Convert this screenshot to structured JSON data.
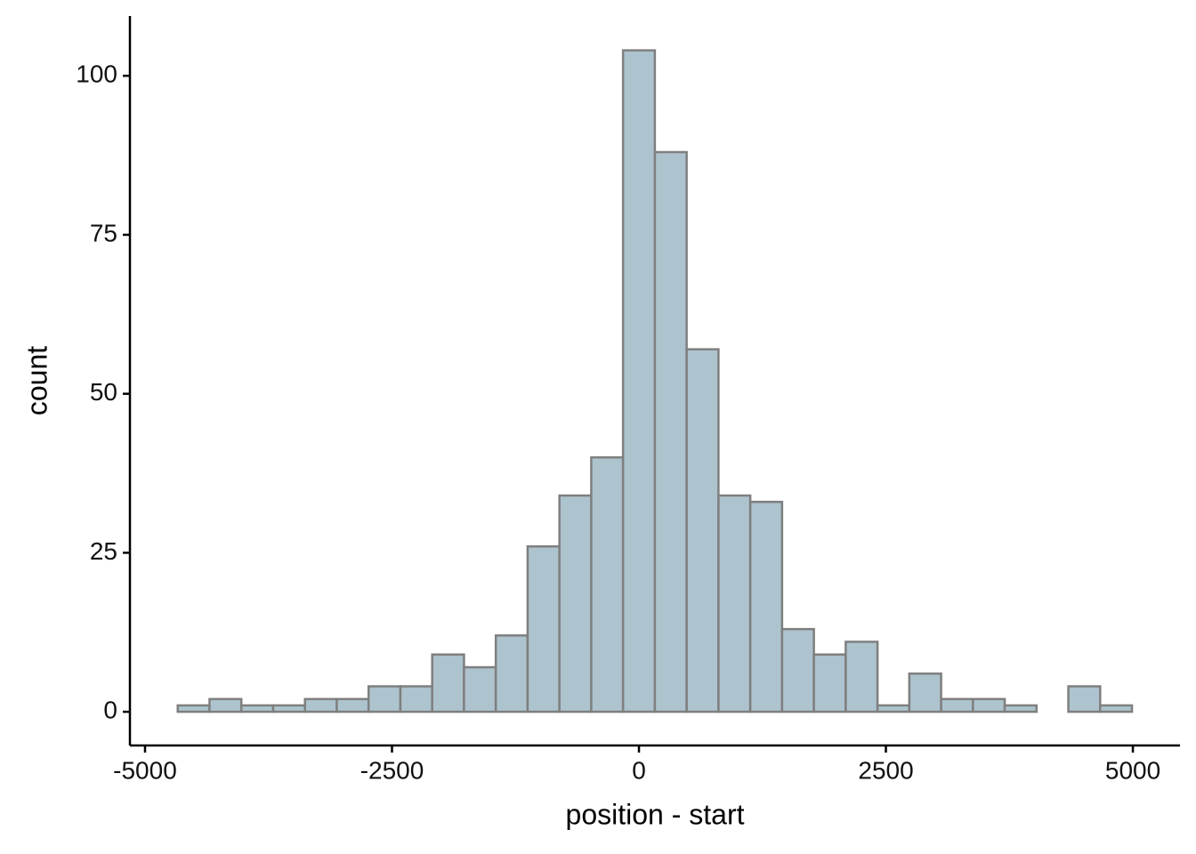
{
  "chart_data": {
    "type": "histogram",
    "x_label": "position - start",
    "y_label": "count",
    "bins": [
      -4669,
      -4347,
      -4025,
      -3703,
      -3381,
      -3059,
      -2737,
      -2415,
      -2093,
      -1771,
      -1449,
      -1127,
      -805,
      -483,
      -161,
      161,
      483,
      805,
      1127,
      1449,
      1771,
      2093,
      2415,
      2737,
      3059,
      3381,
      3703,
      4025,
      4347,
      4669,
      4991
    ],
    "values": [
      1,
      2,
      1,
      1,
      2,
      2,
      4,
      4,
      9,
      7,
      12,
      26,
      34,
      40,
      104,
      88,
      57,
      34,
      33,
      13,
      9,
      11,
      1,
      6,
      2,
      2,
      1,
      0,
      4,
      1
    ],
    "color": "#adc4ce",
    "edge_color": "#7f7f7f",
    "xlim": [
      -5153,
      5477
    ],
    "ylim": [
      -5.3,
      109.4
    ],
    "xticks": [
      -5000,
      -2500,
      0,
      2500,
      5000
    ],
    "yticks": [
      0,
      25,
      50,
      75,
      100
    ],
    "grid": false
  }
}
